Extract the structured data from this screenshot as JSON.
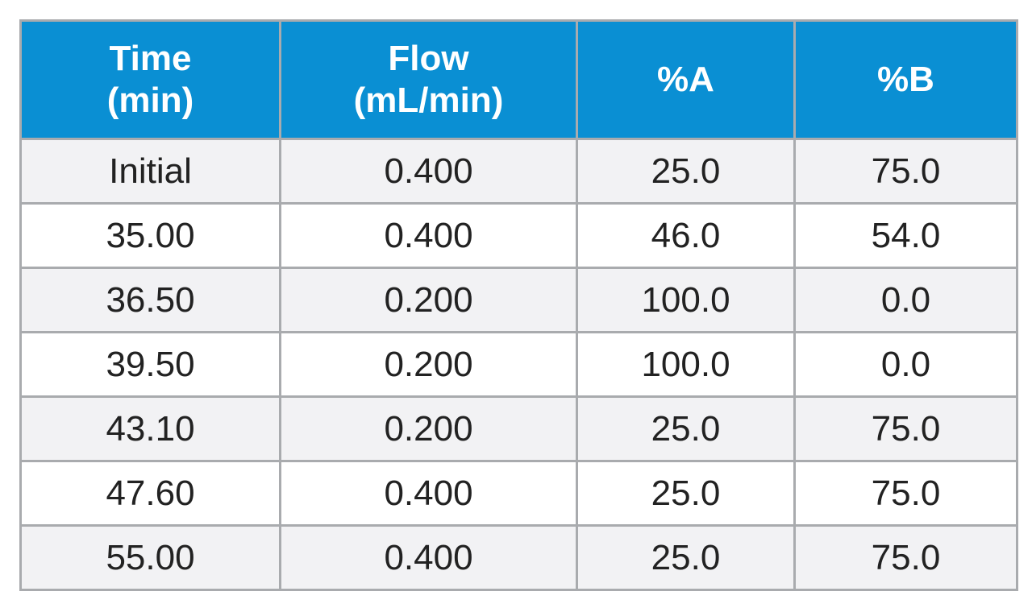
{
  "table": {
    "headers": [
      {
        "line1": "Time",
        "line2": "(min)"
      },
      {
        "line1": "Flow",
        "line2": "(mL/min)"
      },
      {
        "line1": "%A",
        "line2": ""
      },
      {
        "line1": "%B",
        "line2": ""
      }
    ],
    "rows": [
      [
        "Initial",
        "0.400",
        "25.0",
        "75.0"
      ],
      [
        "35.00",
        "0.400",
        "46.0",
        "54.0"
      ],
      [
        "36.50",
        "0.200",
        "100.0",
        "0.0"
      ],
      [
        "39.50",
        "0.200",
        "100.0",
        "0.0"
      ],
      [
        "43.10",
        "0.200",
        "25.0",
        "75.0"
      ],
      [
        "47.60",
        "0.400",
        "25.0",
        "75.0"
      ],
      [
        "55.00",
        "0.400",
        "25.0",
        "75.0"
      ]
    ]
  },
  "colors": {
    "header_bg": "#0a8fd3",
    "header_text": "#ffffff",
    "row_alt_bg": "#f2f2f4",
    "border": "#a9abae"
  }
}
